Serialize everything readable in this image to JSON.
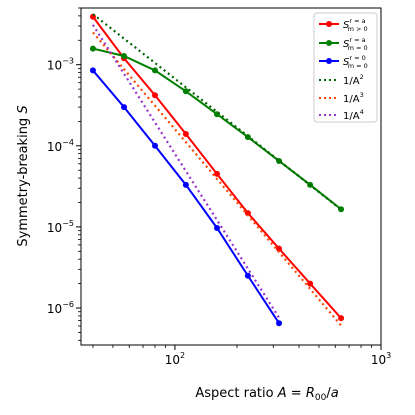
{
  "chart_data": {
    "type": "line",
    "xlabel": "Aspect ratio A = R₀₀/a",
    "ylabel": "Symmetry-breaking S",
    "xscale": "log",
    "yscale": "log",
    "xlim": [
      35,
      1000
    ],
    "ylim": [
      3.5e-07,
      0.005
    ],
    "x_ticks": [
      {
        "value": 100,
        "mantissa": "10",
        "exp": "2"
      },
      {
        "value": 1000,
        "mantissa": "10",
        "exp": "3"
      }
    ],
    "y_ticks": [
      {
        "value": 1e-06,
        "mantissa": "10",
        "exp": "−6"
      },
      {
        "value": 1e-05,
        "mantissa": "10",
        "exp": "−5"
      },
      {
        "value": 0.0001,
        "mantissa": "10",
        "exp": "−4"
      },
      {
        "value": 0.001,
        "mantissa": "10",
        "exp": "−3"
      }
    ],
    "legend_position": "top-right",
    "grid": false,
    "series": [
      {
        "name": "S_{m>0}^{r=a}",
        "label_main": "S",
        "label_sub": "m > 0",
        "label_sup": "r = a",
        "color": "#ff0000",
        "style": "solid",
        "marker": true,
        "x": [
          40,
          56.6,
          80,
          113,
          160,
          226,
          320,
          453,
          640
        ],
        "y": [
          0.0039,
          0.0012,
          0.00042,
          0.00014,
          4.5e-05,
          1.48e-05,
          5.4e-06,
          2e-06,
          7.5e-07
        ]
      },
      {
        "name": "S_{m=0}^{r=a}",
        "label_main": "S",
        "label_sub": "m = 0",
        "label_sup": "r = a",
        "color": "#008000",
        "style": "solid",
        "marker": true,
        "x": [
          40,
          56.6,
          80,
          113,
          160,
          226,
          320,
          453,
          640
        ],
        "y": [
          0.00158,
          0.00128,
          0.00085,
          0.00047,
          0.000245,
          0.000128,
          6.5e-05,
          3.3e-05,
          1.65e-05
        ]
      },
      {
        "name": "S_{m=0}^{r=0}",
        "label_main": "S",
        "label_sub": "m = 0",
        "label_sup": "r = 0",
        "color": "#0000ff",
        "style": "solid",
        "marker": true,
        "x": [
          40,
          56.6,
          80,
          113,
          160,
          226,
          320
        ],
        "y": [
          0.00085,
          0.0003,
          0.0001,
          3.3e-05,
          9.7e-06,
          2.5e-06,
          6.5e-07
        ]
      },
      {
        "name": "1/A^2",
        "label_main": "1/A",
        "label_sup": "2",
        "color": "#006400",
        "style": "dotted",
        "marker": false,
        "x": [
          40,
          640
        ],
        "y": [
          0.0042,
          1.64e-05
        ]
      },
      {
        "name": "1/A^3",
        "label_main": "1/A",
        "label_sup": "3",
        "color": "#ff4500",
        "style": "dotted",
        "marker": false,
        "x": [
          40,
          640
        ],
        "y": [
          0.0025,
          6.1e-07
        ]
      },
      {
        "name": "1/A^4",
        "label_main": "1/A",
        "label_sup": "4",
        "color": "#9932cc",
        "style": "dotted",
        "marker": false,
        "x": [
          40,
          320
        ],
        "y": [
          0.0031,
          7.6e-07
        ]
      }
    ]
  }
}
